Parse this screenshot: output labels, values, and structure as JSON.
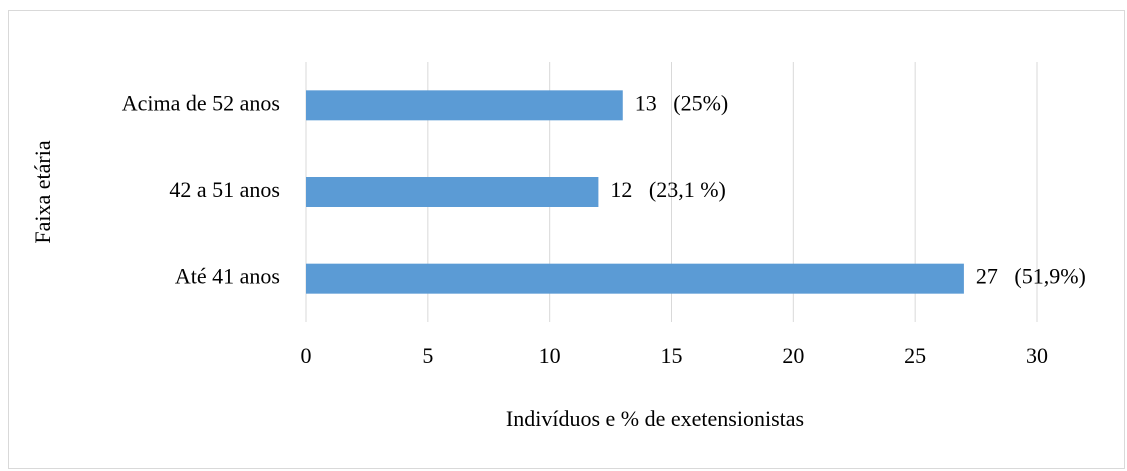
{
  "chart_data": {
    "type": "hbar",
    "categories": [
      "Acima de 52 anos",
      "42 a 51 anos",
      "Até 41 anos"
    ],
    "values": [
      13,
      12,
      27
    ],
    "value_labels": [
      "13   (25%)",
      "12   (23,1 %)",
      "27   (51,9%)"
    ],
    "color": "#5b9bd5",
    "xlim": [
      0,
      30
    ],
    "xticks": [
      0,
      5,
      10,
      15,
      20,
      25,
      30
    ],
    "grid": true,
    "xlabel": "Indivíduos e % de exetensionistas",
    "ylabel": "Faixa etária"
  }
}
